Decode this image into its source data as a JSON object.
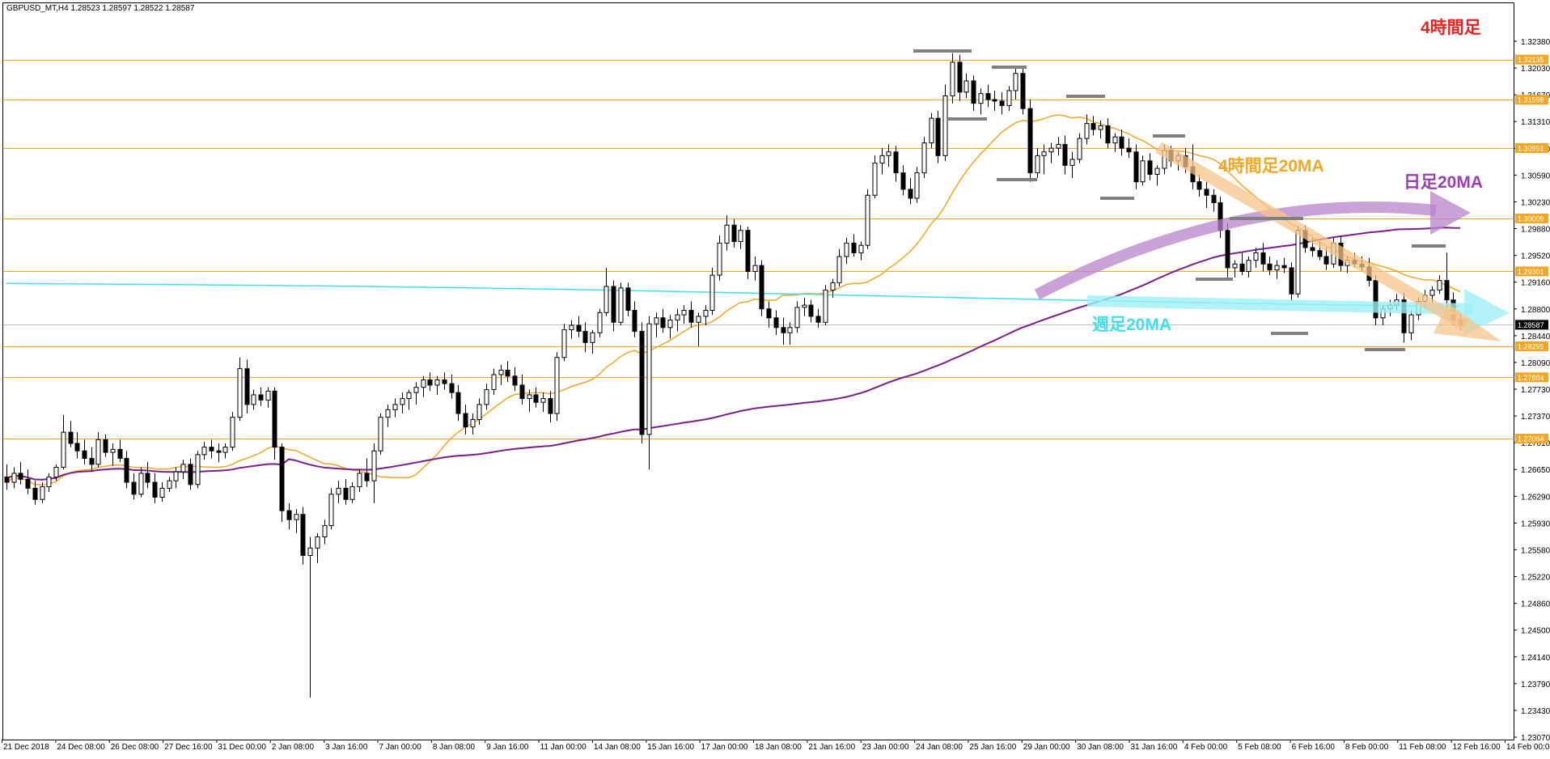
{
  "chart_data": {
    "type": "candlestick",
    "symbol_header": "GBPUSD_MT,H4  1.28523 1.28597 1.28522 1.28587",
    "ylim": [
      1.2307,
      1.3238
    ],
    "y_ticks": [
      "1.32380",
      "1.32030",
      "1.31670",
      "1.31310",
      "1.30950",
      "1.30590",
      "1.30230",
      "1.29880",
      "1.29520",
      "1.29160",
      "1.28800",
      "1.28440",
      "1.28090",
      "1.27730",
      "1.27370",
      "1.27010",
      "1.26650",
      "1.26290",
      "1.25930",
      "1.25580",
      "1.25220",
      "1.24860",
      "1.24500",
      "1.24140",
      "1.23790",
      "1.23430",
      "1.23070"
    ],
    "x_tick_labels": [
      "21 Dec 2018",
      "24 Dec 08:00",
      "26 Dec 08:00",
      "27 Dec 16:00",
      "31 Dec 00:00",
      "2 Jan 08:00",
      "3 Jan 16:00",
      "7 Jan 00:00",
      "8 Jan 08:00",
      "9 Jan 16:00",
      "11 Jan 00:00",
      "14 Jan 08:00",
      "15 Jan 16:00",
      "17 Jan 00:00",
      "18 Jan 08:00",
      "21 Jan 16:00",
      "23 Jan 00:00",
      "24 Jan 08:00",
      "25 Jan 16:00",
      "29 Jan 00:00",
      "30 Jan 08:00",
      "31 Jan 16:00",
      "4 Feb 00:00",
      "5 Feb 08:00",
      "6 Feb 16:00",
      "8 Feb 00:00",
      "11 Feb 08:00",
      "12 Feb 16:00",
      "14 Feb 00:00"
    ],
    "horizontal_levels": [
      {
        "value": 1.32135,
        "label": "1.32135"
      },
      {
        "value": 1.31598,
        "label": "1.31598"
      },
      {
        "value": 1.30951,
        "label": "1.30951"
      },
      {
        "value": 1.30009,
        "label": "1.30009"
      },
      {
        "value": 1.29301,
        "label": "1.29301"
      },
      {
        "value": 1.28299,
        "label": "1.28299"
      },
      {
        "value": 1.27884,
        "label": "1.27884"
      },
      {
        "value": 1.27064,
        "label": "1.27064"
      }
    ],
    "current_price": {
      "value": 1.28587,
      "label": "1.28587"
    },
    "series": [
      {
        "name": "4時間足20MA",
        "color": "#f5a623"
      },
      {
        "name": "日足20MA",
        "color": "#7b1f8e"
      },
      {
        "name": "週足20MA",
        "color": "#41e0f0"
      }
    ],
    "annotations": {
      "timeframe": "4時間足",
      "ma4h_label": "4時間足20MA",
      "ma_daily_label": "日足20MA",
      "ma_weekly_label": "週足20MA"
    },
    "candles": [
      [
        1.2655,
        1.2672,
        1.2638,
        1.2648
      ],
      [
        1.2648,
        1.2668,
        1.264,
        1.266
      ],
      [
        1.266,
        1.2675,
        1.2645,
        1.2652
      ],
      [
        1.2652,
        1.2665,
        1.2632,
        1.264
      ],
      [
        1.264,
        1.265,
        1.2618,
        1.2625
      ],
      [
        1.2625,
        1.2648,
        1.262,
        1.2642
      ],
      [
        1.2642,
        1.266,
        1.2635,
        1.2655
      ],
      [
        1.2655,
        1.2672,
        1.265,
        1.2668
      ],
      [
        1.2668,
        1.2738,
        1.2665,
        1.2715
      ],
      [
        1.2715,
        1.273,
        1.2695,
        1.27
      ],
      [
        1.27,
        1.2715,
        1.268,
        1.269
      ],
      [
        1.269,
        1.2705,
        1.2672,
        1.268
      ],
      [
        1.268,
        1.2695,
        1.2662,
        1.2672
      ],
      [
        1.2672,
        1.2715,
        1.2668,
        1.2705
      ],
      [
        1.2705,
        1.2712,
        1.2682,
        1.2688
      ],
      [
        1.2688,
        1.27,
        1.267,
        1.2692
      ],
      [
        1.2692,
        1.2705,
        1.2675,
        1.268
      ],
      [
        1.268,
        1.269,
        1.264,
        1.2648
      ],
      [
        1.2648,
        1.266,
        1.2625,
        1.2632
      ],
      [
        1.2632,
        1.2668,
        1.2628,
        1.266
      ],
      [
        1.266,
        1.2675,
        1.264,
        1.2648
      ],
      [
        1.2648,
        1.266,
        1.262,
        1.2628
      ],
      [
        1.2628,
        1.2648,
        1.2622,
        1.264
      ],
      [
        1.264,
        1.2655,
        1.2635,
        1.265
      ],
      [
        1.265,
        1.2668,
        1.264,
        1.2662
      ],
      [
        1.2662,
        1.2678,
        1.2652,
        1.2672
      ],
      [
        1.2672,
        1.268,
        1.2638,
        1.2645
      ],
      [
        1.2645,
        1.269,
        1.264,
        1.2685
      ],
      [
        1.2685,
        1.2702,
        1.2678,
        1.2695
      ],
      [
        1.2695,
        1.2705,
        1.268,
        1.269
      ],
      [
        1.269,
        1.27,
        1.2675,
        1.2688
      ],
      [
        1.2688,
        1.27,
        1.268,
        1.2695
      ],
      [
        1.2695,
        1.2742,
        1.269,
        1.2735
      ],
      [
        1.2735,
        1.2815,
        1.273,
        1.28
      ],
      [
        1.28,
        1.2812,
        1.274,
        1.2752
      ],
      [
        1.2752,
        1.2772,
        1.2745,
        1.2765
      ],
      [
        1.2765,
        1.2775,
        1.275,
        1.2758
      ],
      [
        1.2758,
        1.2775,
        1.2748,
        1.277
      ],
      [
        1.277,
        1.2775,
        1.2678,
        1.2695
      ],
      [
        1.2695,
        1.27,
        1.2595,
        1.261
      ],
      [
        1.261,
        1.262,
        1.2585,
        1.2598
      ],
      [
        1.2598,
        1.2612,
        1.258,
        1.2605
      ],
      [
        1.2605,
        1.2615,
        1.2538,
        1.255
      ],
      [
        1.255,
        1.2575,
        1.236,
        1.256
      ],
      [
        1.256,
        1.258,
        1.254,
        1.2575
      ],
      [
        1.2575,
        1.2598,
        1.2565,
        1.259
      ],
      [
        1.259,
        1.264,
        1.2585,
        1.2632
      ],
      [
        1.2632,
        1.265,
        1.262,
        1.264
      ],
      [
        1.264,
        1.2652,
        1.2618,
        1.2625
      ],
      [
        1.2625,
        1.2648,
        1.262,
        1.2642
      ],
      [
        1.2642,
        1.2665,
        1.2635,
        1.266
      ],
      [
        1.266,
        1.268,
        1.2642,
        1.265
      ],
      [
        1.265,
        1.27,
        1.262,
        1.269
      ],
      [
        1.269,
        1.274,
        1.2685,
        1.2735
      ],
      [
        1.2735,
        1.2752,
        1.2722,
        1.2745
      ],
      [
        1.2745,
        1.276,
        1.2735,
        1.2752
      ],
      [
        1.2752,
        1.2768,
        1.274,
        1.276
      ],
      [
        1.276,
        1.2772,
        1.2745,
        1.2768
      ],
      [
        1.2768,
        1.2782,
        1.2752,
        1.2775
      ],
      [
        1.2775,
        1.279,
        1.2762,
        1.2785
      ],
      [
        1.2785,
        1.2795,
        1.277,
        1.2778
      ],
      [
        1.2778,
        1.279,
        1.2765,
        1.2785
      ],
      [
        1.2785,
        1.2795,
        1.2772,
        1.278
      ],
      [
        1.278,
        1.2792,
        1.276,
        1.2768
      ],
      [
        1.2768,
        1.2778,
        1.273,
        1.274
      ],
      [
        1.274,
        1.2752,
        1.2712,
        1.2722
      ],
      [
        1.2722,
        1.274,
        1.2712,
        1.2732
      ],
      [
        1.2732,
        1.276,
        1.2725,
        1.2752
      ],
      [
        1.2752,
        1.278,
        1.2745,
        1.2772
      ],
      [
        1.2772,
        1.28,
        1.2765,
        1.2792
      ],
      [
        1.2792,
        1.2805,
        1.2778,
        1.2798
      ],
      [
        1.2798,
        1.281,
        1.2782,
        1.279
      ],
      [
        1.279,
        1.2802,
        1.277,
        1.2778
      ],
      [
        1.2778,
        1.2792,
        1.2752,
        1.276
      ],
      [
        1.276,
        1.2772,
        1.2742,
        1.2765
      ],
      [
        1.2765,
        1.2775,
        1.2748,
        1.2755
      ],
      [
        1.2755,
        1.2768,
        1.2742,
        1.276
      ],
      [
        1.276,
        1.277,
        1.2728,
        1.274
      ],
      [
        1.274,
        1.2822,
        1.273,
        1.2815
      ],
      [
        1.2815,
        1.286,
        1.281,
        1.2852
      ],
      [
        1.2852,
        1.2865,
        1.284,
        1.2858
      ],
      [
        1.2858,
        1.287,
        1.2842,
        1.285
      ],
      [
        1.285,
        1.2862,
        1.2822,
        1.2835
      ],
      [
        1.2835,
        1.2852,
        1.282,
        1.2848
      ],
      [
        1.2848,
        1.288,
        1.2842,
        1.2875
      ],
      [
        1.2875,
        1.2935,
        1.287,
        1.291
      ],
      [
        1.291,
        1.2918,
        1.285,
        1.2862
      ],
      [
        1.2862,
        1.2915,
        1.2858,
        1.2908
      ],
      [
        1.2908,
        1.2915,
        1.287,
        1.2878
      ],
      [
        1.2878,
        1.289,
        1.2842,
        1.285
      ],
      [
        1.285,
        1.2862,
        1.27,
        1.2712
      ],
      [
        1.2712,
        1.287,
        1.2665,
        1.286
      ],
      [
        1.286,
        1.2875,
        1.2842,
        1.2868
      ],
      [
        1.2868,
        1.288,
        1.2848,
        1.2855
      ],
      [
        1.2855,
        1.2872,
        1.284,
        1.2865
      ],
      [
        1.2865,
        1.288,
        1.285,
        1.2872
      ],
      [
        1.2872,
        1.2885,
        1.286,
        1.2878
      ],
      [
        1.2878,
        1.289,
        1.2855,
        1.2862
      ],
      [
        1.2862,
        1.2875,
        1.283,
        1.287
      ],
      [
        1.287,
        1.2885,
        1.2858,
        1.2878
      ],
      [
        1.2878,
        1.2935,
        1.2872,
        1.2925
      ],
      [
        1.2925,
        1.2978,
        1.2918,
        1.2968
      ],
      [
        1.2968,
        1.3005,
        1.2958,
        1.2992
      ],
      [
        1.2992,
        1.3,
        1.2962,
        1.297
      ],
      [
        1.297,
        1.2992,
        1.296,
        1.2985
      ],
      [
        1.2985,
        1.299,
        1.292,
        1.293
      ],
      [
        1.293,
        1.295,
        1.2918,
        1.2938
      ],
      [
        1.2938,
        1.2945,
        1.287,
        1.288
      ],
      [
        1.288,
        1.289,
        1.2855,
        1.2868
      ],
      [
        1.2868,
        1.2878,
        1.2845,
        1.2855
      ],
      [
        1.2855,
        1.2868,
        1.2832,
        1.2848
      ],
      [
        1.2848,
        1.2862,
        1.2832,
        1.2855
      ],
      [
        1.2855,
        1.289,
        1.2848,
        1.2882
      ],
      [
        1.2882,
        1.2895,
        1.287,
        1.2885
      ],
      [
        1.2885,
        1.2892,
        1.2862,
        1.287
      ],
      [
        1.287,
        1.288,
        1.2855,
        1.2862
      ],
      [
        1.2862,
        1.2912,
        1.2858,
        1.2905
      ],
      [
        1.2905,
        1.292,
        1.2895,
        1.2915
      ],
      [
        1.2915,
        1.296,
        1.291,
        1.295
      ],
      [
        1.295,
        1.2975,
        1.294,
        1.2968
      ],
      [
        1.2968,
        1.298,
        1.295,
        1.2955
      ],
      [
        1.2955,
        1.297,
        1.2945,
        1.2965
      ],
      [
        1.2965,
        1.304,
        1.296,
        1.3032
      ],
      [
        1.3032,
        1.3085,
        1.3028,
        1.3075
      ],
      [
        1.3075,
        1.3095,
        1.306,
        1.3085
      ],
      [
        1.3085,
        1.31,
        1.307,
        1.309
      ],
      [
        1.309,
        1.3098,
        1.305,
        1.3062
      ],
      [
        1.3062,
        1.3072,
        1.3032,
        1.304
      ],
      [
        1.304,
        1.3055,
        1.302,
        1.3028
      ],
      [
        1.3028,
        1.307,
        1.3022,
        1.3062
      ],
      [
        1.3062,
        1.311,
        1.3055,
        1.3102
      ],
      [
        1.3102,
        1.3142,
        1.3095,
        1.3135
      ],
      [
        1.3135,
        1.3145,
        1.3075,
        1.3085
      ],
      [
        1.3085,
        1.318,
        1.3078,
        1.3165
      ],
      [
        1.3165,
        1.3222,
        1.3155,
        1.321
      ],
      [
        1.321,
        1.322,
        1.3158,
        1.317
      ],
      [
        1.317,
        1.3195,
        1.3162,
        1.3185
      ],
      [
        1.3185,
        1.3192,
        1.3145,
        1.3155
      ],
      [
        1.3155,
        1.3175,
        1.314,
        1.3168
      ],
      [
        1.3168,
        1.318,
        1.315,
        1.316
      ],
      [
        1.316,
        1.3172,
        1.3145,
        1.3158
      ],
      [
        1.3158,
        1.317,
        1.314,
        1.3152
      ],
      [
        1.3152,
        1.3178,
        1.3145,
        1.3172
      ],
      [
        1.3172,
        1.3205,
        1.316,
        1.3195
      ],
      [
        1.3195,
        1.3205,
        1.314,
        1.3148
      ],
      [
        1.3148,
        1.316,
        1.305,
        1.3062
      ],
      [
        1.3062,
        1.3095,
        1.3055,
        1.3085
      ],
      [
        1.3085,
        1.31,
        1.306,
        1.309
      ],
      [
        1.309,
        1.3102,
        1.3075,
        1.3095
      ],
      [
        1.3095,
        1.311,
        1.3085,
        1.31
      ],
      [
        1.31,
        1.3112,
        1.306,
        1.3072
      ],
      [
        1.3072,
        1.309,
        1.3055,
        1.308
      ],
      [
        1.308,
        1.3115,
        1.3075,
        1.3108
      ],
      [
        1.3108,
        1.314,
        1.31,
        1.3128
      ],
      [
        1.3128,
        1.3138,
        1.3112,
        1.312
      ],
      [
        1.312,
        1.3132,
        1.3108,
        1.3125
      ],
      [
        1.3125,
        1.3135,
        1.3095,
        1.3102
      ],
      [
        1.3102,
        1.3115,
        1.309,
        1.311
      ],
      [
        1.311,
        1.312,
        1.3085,
        1.3095
      ],
      [
        1.3095,
        1.3108,
        1.3082,
        1.309
      ],
      [
        1.309,
        1.31,
        1.304,
        1.305
      ],
      [
        1.305,
        1.3085,
        1.3045,
        1.3078
      ],
      [
        1.3078,
        1.3088,
        1.3052,
        1.306
      ],
      [
        1.306,
        1.3072,
        1.3045,
        1.3068
      ],
      [
        1.3068,
        1.31,
        1.306,
        1.3092
      ],
      [
        1.3092,
        1.3098,
        1.307,
        1.3078
      ],
      [
        1.3078,
        1.309,
        1.3065,
        1.3085
      ],
      [
        1.3085,
        1.3095,
        1.3062,
        1.307
      ],
      [
        1.307,
        1.31,
        1.304,
        1.305
      ],
      [
        1.305,
        1.306,
        1.303,
        1.304
      ],
      [
        1.304,
        1.305,
        1.3015,
        1.3032
      ],
      [
        1.3032,
        1.304,
        1.301,
        1.3022
      ],
      [
        1.3022,
        1.303,
        1.2975,
        1.2985
      ],
      [
        1.2985,
        1.2995,
        1.292,
        1.2935
      ],
      [
        1.2935,
        1.2945,
        1.2922,
        1.294
      ],
      [
        1.294,
        1.2955,
        1.2925,
        1.293
      ],
      [
        1.293,
        1.295,
        1.2922,
        1.2945
      ],
      [
        1.2945,
        1.2962,
        1.2935,
        1.2955
      ],
      [
        1.2955,
        1.2968,
        1.293,
        1.294
      ],
      [
        1.294,
        1.295,
        1.2925,
        1.2932
      ],
      [
        1.2932,
        1.2945,
        1.292,
        1.2938
      ],
      [
        1.2938,
        1.2948,
        1.2928,
        1.2935
      ],
      [
        1.2935,
        1.2942,
        1.289,
        1.29
      ],
      [
        1.29,
        1.299,
        1.2895,
        1.2985
      ],
      [
        1.2985,
        1.2992,
        1.2955,
        1.2962
      ],
      [
        1.2962,
        1.2975,
        1.295,
        1.2958
      ],
      [
        1.2958,
        1.297,
        1.2945,
        1.295
      ],
      [
        1.295,
        1.2962,
        1.2932,
        1.294
      ],
      [
        1.294,
        1.2975,
        1.2935,
        1.2968
      ],
      [
        1.2968,
        1.2978,
        1.293,
        1.2938
      ],
      [
        1.2938,
        1.295,
        1.2928,
        1.2945
      ],
      [
        1.2945,
        1.2955,
        1.2935,
        1.294
      ],
      [
        1.294,
        1.295,
        1.293,
        1.2936
      ],
      [
        1.2936,
        1.2948,
        1.291,
        1.2918
      ],
      [
        1.2918,
        1.2925,
        1.2858,
        1.2868
      ],
      [
        1.2868,
        1.2885,
        1.2858,
        1.288
      ],
      [
        1.288,
        1.2892,
        1.287,
        1.2885
      ],
      [
        1.2885,
        1.29,
        1.2878,
        1.2892
      ],
      [
        1.2892,
        1.2902,
        1.2835,
        1.2848
      ],
      [
        1.2848,
        1.2878,
        1.2838,
        1.2872
      ],
      [
        1.2872,
        1.2895,
        1.2865,
        1.289
      ],
      [
        1.289,
        1.2905,
        1.288,
        1.2898
      ],
      [
        1.2898,
        1.291,
        1.2888,
        1.2905
      ],
      [
        1.2905,
        1.2925,
        1.29,
        1.2918
      ],
      [
        1.2918,
        1.2955,
        1.288,
        1.2892
      ],
      [
        1.2892,
        1.2902,
        1.2858,
        1.2865
      ],
      [
        1.2865,
        1.2875,
        1.2852,
        1.2858
      ]
    ]
  }
}
